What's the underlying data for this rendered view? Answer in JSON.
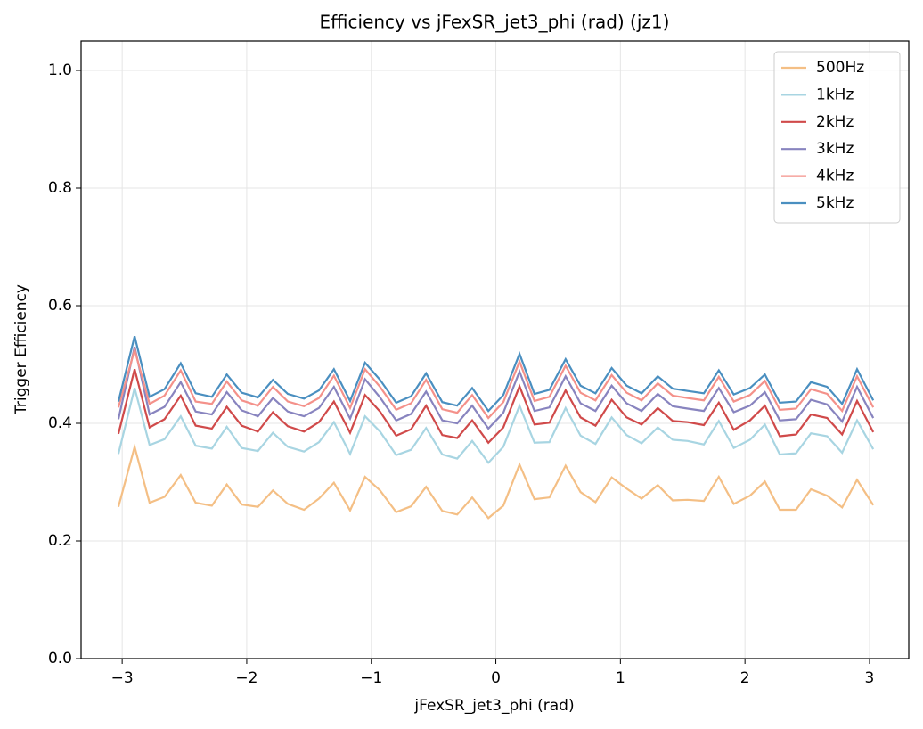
{
  "chart_data": {
    "type": "line",
    "title": "Efficiency vs jFexSR_jet3_phi (rad) (jz1)",
    "xlabel": "jFexSR_jet3_phi (rad)",
    "ylabel": "Trigger Efficiency",
    "x": [
      -3.03,
      -2.9,
      -2.78,
      -2.66,
      -2.53,
      -2.41,
      -2.28,
      -2.16,
      -2.04,
      -1.91,
      -1.79,
      -1.67,
      -1.54,
      -1.42,
      -1.3,
      -1.17,
      -1.05,
      -0.93,
      -0.8,
      -0.68,
      -0.56,
      -0.43,
      -0.31,
      -0.19,
      -0.06,
      0.06,
      0.19,
      0.31,
      0.43,
      0.56,
      0.68,
      0.8,
      0.93,
      1.05,
      1.17,
      1.3,
      1.42,
      1.54,
      1.67,
      1.79,
      1.91,
      2.04,
      2.16,
      2.28,
      2.41,
      2.53,
      2.66,
      2.78,
      2.9,
      3.03
    ],
    "series": [
      {
        "name": "500Hz",
        "color": "#f4bf85",
        "values": [
          0.258,
          0.36,
          0.265,
          0.275,
          0.312,
          0.265,
          0.26,
          0.296,
          0.262,
          0.258,
          0.286,
          0.263,
          0.253,
          0.272,
          0.299,
          0.252,
          0.309,
          0.286,
          0.249,
          0.259,
          0.292,
          0.251,
          0.245,
          0.274,
          0.239,
          0.26,
          0.33,
          0.271,
          0.274,
          0.328,
          0.283,
          0.266,
          0.308,
          0.289,
          0.272,
          0.295,
          0.269,
          0.27,
          0.268,
          0.309,
          0.263,
          0.277,
          0.301,
          0.253,
          0.253,
          0.288,
          0.277,
          0.257,
          0.304,
          0.261
        ]
      },
      {
        "name": "1kHz",
        "color": "#a8d5e2",
        "values": [
          0.348,
          0.46,
          0.363,
          0.373,
          0.412,
          0.362,
          0.357,
          0.394,
          0.358,
          0.353,
          0.384,
          0.36,
          0.352,
          0.368,
          0.402,
          0.348,
          0.412,
          0.386,
          0.346,
          0.355,
          0.392,
          0.347,
          0.34,
          0.37,
          0.333,
          0.36,
          0.43,
          0.367,
          0.368,
          0.426,
          0.379,
          0.365,
          0.41,
          0.38,
          0.366,
          0.393,
          0.372,
          0.37,
          0.364,
          0.404,
          0.358,
          0.372,
          0.398,
          0.347,
          0.349,
          0.383,
          0.378,
          0.35,
          0.405,
          0.356
        ]
      },
      {
        "name": "2kHz",
        "color": "#d04a4a",
        "values": [
          0.382,
          0.492,
          0.393,
          0.407,
          0.447,
          0.396,
          0.391,
          0.428,
          0.396,
          0.386,
          0.419,
          0.395,
          0.386,
          0.402,
          0.437,
          0.384,
          0.448,
          0.42,
          0.379,
          0.39,
          0.43,
          0.38,
          0.375,
          0.405,
          0.367,
          0.393,
          0.463,
          0.398,
          0.401,
          0.456,
          0.41,
          0.396,
          0.44,
          0.41,
          0.398,
          0.426,
          0.404,
          0.402,
          0.397,
          0.435,
          0.389,
          0.405,
          0.43,
          0.378,
          0.381,
          0.415,
          0.409,
          0.381,
          0.438,
          0.385
        ]
      },
      {
        "name": "3kHz",
        "color": "#8884bf",
        "values": [
          0.407,
          0.53,
          0.415,
          0.428,
          0.47,
          0.42,
          0.415,
          0.453,
          0.422,
          0.412,
          0.443,
          0.42,
          0.412,
          0.426,
          0.462,
          0.408,
          0.475,
          0.444,
          0.405,
          0.416,
          0.454,
          0.405,
          0.4,
          0.43,
          0.391,
          0.418,
          0.488,
          0.421,
          0.427,
          0.48,
          0.434,
          0.421,
          0.464,
          0.434,
          0.421,
          0.45,
          0.429,
          0.425,
          0.421,
          0.46,
          0.419,
          0.43,
          0.453,
          0.405,
          0.407,
          0.44,
          0.432,
          0.403,
          0.462,
          0.409
        ]
      },
      {
        "name": "4kHz",
        "color": "#f4918a",
        "values": [
          0.427,
          0.525,
          0.433,
          0.447,
          0.49,
          0.437,
          0.433,
          0.471,
          0.439,
          0.43,
          0.462,
          0.437,
          0.429,
          0.443,
          0.481,
          0.426,
          0.492,
          0.462,
          0.423,
          0.434,
          0.474,
          0.424,
          0.418,
          0.448,
          0.409,
          0.436,
          0.505,
          0.438,
          0.445,
          0.498,
          0.452,
          0.439,
          0.482,
          0.452,
          0.439,
          0.468,
          0.447,
          0.443,
          0.439,
          0.479,
          0.437,
          0.448,
          0.472,
          0.423,
          0.425,
          0.458,
          0.45,
          0.421,
          0.48,
          0.427
        ]
      },
      {
        "name": "5kHz",
        "color": "#4a8fc0",
        "values": [
          0.437,
          0.548,
          0.445,
          0.458,
          0.502,
          0.451,
          0.445,
          0.483,
          0.452,
          0.444,
          0.474,
          0.45,
          0.442,
          0.456,
          0.492,
          0.438,
          0.503,
          0.474,
          0.435,
          0.446,
          0.485,
          0.436,
          0.43,
          0.46,
          0.421,
          0.448,
          0.518,
          0.45,
          0.457,
          0.509,
          0.464,
          0.451,
          0.494,
          0.464,
          0.451,
          0.48,
          0.459,
          0.455,
          0.451,
          0.49,
          0.449,
          0.46,
          0.483,
          0.435,
          0.437,
          0.47,
          0.462,
          0.433,
          0.492,
          0.439
        ]
      }
    ],
    "xlim": [
      -3.33,
      3.315
    ],
    "ylim": [
      0,
      1.05
    ],
    "xticks": [
      {
        "value": -3,
        "label": "−3"
      },
      {
        "value": -2,
        "label": "−2"
      },
      {
        "value": -1,
        "label": "−1"
      },
      0,
      1,
      2,
      3
    ],
    "yticks": [
      {
        "value": 0,
        "label": "0.0"
      },
      {
        "value": 0.2,
        "label": "0.2"
      },
      {
        "value": 0.4,
        "label": "0.4"
      },
      {
        "value": 0.6,
        "label": "0.6"
      },
      {
        "value": 0.8,
        "label": "0.8"
      },
      {
        "value": 1.0,
        "label": "1.0"
      }
    ],
    "grid": true,
    "legend": "upper right"
  }
}
